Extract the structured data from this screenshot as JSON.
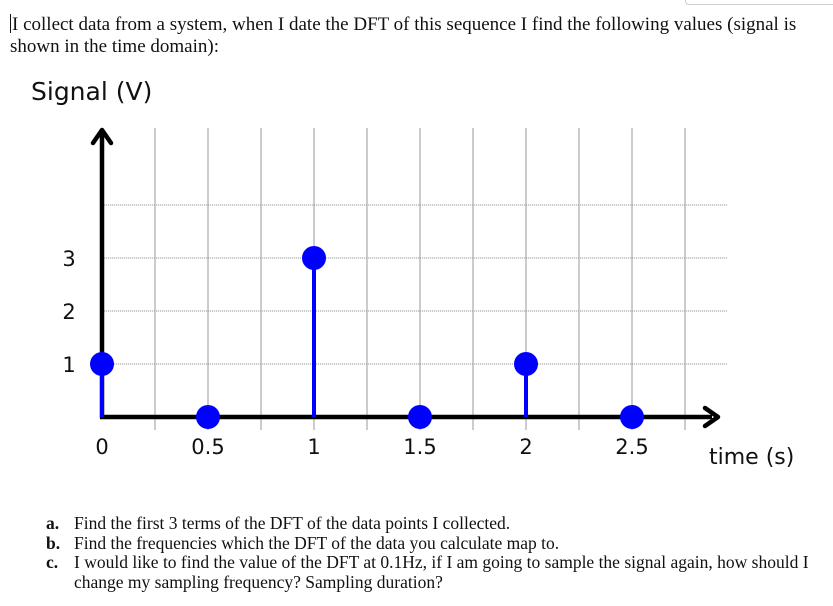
{
  "intro_text": "I collect data from a system, when I date the DFT of this sequence I find the following values (signal is shown in the time domain):",
  "chart": {
    "ylabel": "Signal (V)",
    "xlabel": "time (s)",
    "y_ticks": [
      "1",
      "2",
      "3"
    ],
    "x_ticks": [
      "0",
      "0.5",
      "1",
      "1.5",
      "2",
      "2.5"
    ],
    "stem_color": "#0000ff",
    "axis_color": "#000000",
    "grid_color": "#9a9a9a"
  },
  "chart_data": {
    "type": "scatter",
    "subtype": "stem",
    "title": "",
    "xlabel": "time (s)",
    "ylabel": "Signal (V)",
    "x": [
      0,
      0.5,
      1,
      1.5,
      2,
      2.5
    ],
    "values": [
      1,
      0,
      3,
      0,
      1,
      0
    ],
    "x_ticks": [
      0,
      0.5,
      1,
      1.5,
      2,
      2.5
    ],
    "y_ticks": [
      1,
      2,
      3
    ],
    "xlim": [
      0,
      2.9
    ],
    "ylim": [
      0,
      5
    ],
    "grid": true,
    "grid_step_x": 0.25,
    "grid_step_y": 1,
    "legend": null
  },
  "questions": [
    {
      "mark": "a.",
      "text": "Find the first 3 terms of the DFT of the data points I collected."
    },
    {
      "mark": "b.",
      "text": "Find the frequencies which the DFT of the data you calculate map to."
    },
    {
      "mark": "c.",
      "text": "I would like to find the value of the DFT at 0.1Hz, if I am going to sample the signal again, how should I change my sampling frequency? Sampling duration?"
    }
  ]
}
